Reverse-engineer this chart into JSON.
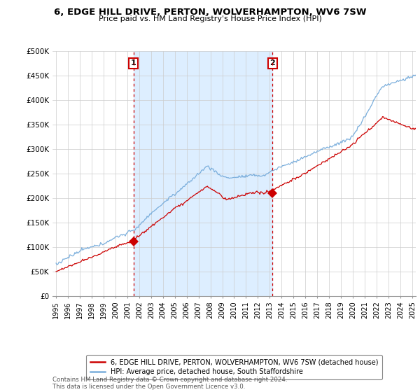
{
  "title": "6, EDGE HILL DRIVE, PERTON, WOLVERHAMPTON, WV6 7SW",
  "subtitle": "Price paid vs. HM Land Registry's House Price Index (HPI)",
  "ylabel_ticks": [
    "£0",
    "£50K",
    "£100K",
    "£150K",
    "£200K",
    "£250K",
    "£300K",
    "£350K",
    "£400K",
    "£450K",
    "£500K"
  ],
  "ytick_values": [
    0,
    50000,
    100000,
    150000,
    200000,
    250000,
    300000,
    350000,
    400000,
    450000,
    500000
  ],
  "xlim_start": 1994.7,
  "xlim_end": 2025.3,
  "ylim": [
    0,
    500000
  ],
  "purchase1_x": 2001.51,
  "purchase1_y": 111500,
  "purchase2_x": 2013.24,
  "purchase2_y": 210000,
  "legend_line1": "6, EDGE HILL DRIVE, PERTON, WOLVERHAMPTON, WV6 7SW (detached house)",
  "legend_line2": "HPI: Average price, detached house, South Staffordshire",
  "footnote": "Contains HM Land Registry data © Crown copyright and database right 2024.\nThis data is licensed under the Open Government Licence v3.0.",
  "red_color": "#cc0000",
  "blue_color": "#7aaedc",
  "shade_color": "#ddeeff",
  "background_color": "#ffffff",
  "grid_color": "#cccccc"
}
